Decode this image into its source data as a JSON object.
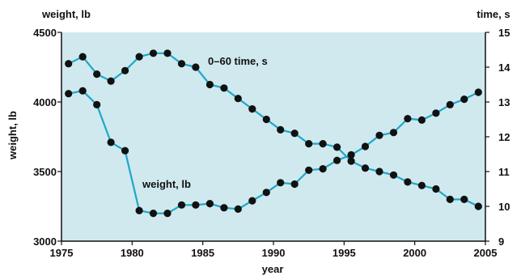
{
  "chart_data": {
    "type": "line",
    "title": "",
    "xlabel": "year",
    "ylabel": "weight, lb",
    "y2label": "",
    "left_axis_header": "weight, lb",
    "right_axis_header": "time, s",
    "xlim": [
      1975,
      2005
    ],
    "ylim": [
      3000,
      4500
    ],
    "y2lim": [
      9,
      15
    ],
    "xticks": [
      "1975",
      "1980",
      "1985",
      "1990",
      "1995",
      "2000",
      "2005"
    ],
    "yticks": [
      "3000",
      "3500",
      "4000",
      "4500"
    ],
    "y2ticks": [
      "9",
      "10",
      "11",
      "12",
      "13",
      "14",
      "15"
    ],
    "grid": false,
    "plot_background": "#cfe9ef",
    "line_color": "#1ea7c7",
    "marker_color": "#111111",
    "series": [
      {
        "name": "weight, lb",
        "axis": "left",
        "annotation": "weight, lb",
        "x": [
          1975.5,
          1976.5,
          1977.5,
          1978.5,
          1979.5,
          1980.5,
          1981.5,
          1982.5,
          1983.5,
          1984.5,
          1985.5,
          1986.5,
          1987.5,
          1988.5,
          1989.5,
          1990.5,
          1991.5,
          1992.5,
          1993.5,
          1994.5,
          1995.5,
          1996.5,
          1997.5,
          1998.5,
          1999.5,
          2000.5,
          2001.5,
          2002.5,
          2003.5,
          2004.5
        ],
        "values": [
          4060,
          4080,
          3980,
          3710,
          3650,
          3220,
          3200,
          3200,
          3260,
          3260,
          3270,
          3240,
          3230,
          3290,
          3350,
          3420,
          3410,
          3510,
          3520,
          3580,
          3620,
          3680,
          3760,
          3780,
          3880,
          3870,
          3920,
          3980,
          4020,
          4070
        ]
      },
      {
        "name": "0–60 time, s",
        "axis": "right",
        "annotation": "0–60 time, s",
        "x": [
          1975.5,
          1976.5,
          1977.5,
          1978.5,
          1979.5,
          1980.5,
          1981.5,
          1982.5,
          1983.5,
          1984.5,
          1985.5,
          1986.5,
          1987.5,
          1988.5,
          1989.5,
          1990.5,
          1991.5,
          1992.5,
          1993.5,
          1994.5,
          1995.5,
          1996.5,
          1997.5,
          1998.5,
          1999.5,
          2000.5,
          2001.5,
          2002.5,
          2003.5,
          2004.5
        ],
        "values": [
          14.1,
          14.3,
          13.8,
          13.6,
          13.9,
          14.3,
          14.4,
          14.4,
          14.1,
          14.0,
          13.5,
          13.4,
          13.1,
          12.8,
          12.5,
          12.2,
          12.1,
          11.8,
          11.8,
          11.7,
          11.3,
          11.1,
          11.0,
          10.9,
          10.7,
          10.6,
          10.5,
          10.2,
          10.2,
          10.0
        ]
      }
    ]
  }
}
